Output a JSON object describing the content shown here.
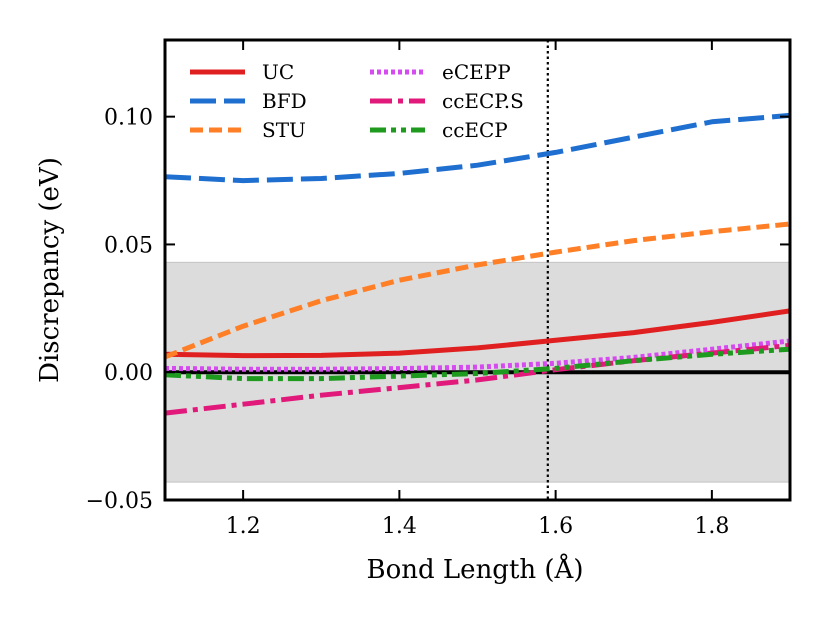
{
  "chart_data": {
    "type": "line",
    "xlabel": "Bond Length (Å)",
    "ylabel": "Discrepancy (eV)",
    "xlim": [
      1.1,
      1.9
    ],
    "ylim": [
      -0.05,
      0.13
    ],
    "xticks": [
      1.2,
      1.4,
      1.6,
      1.8
    ],
    "xtick_labels": [
      "1.2",
      "1.4",
      "1.6",
      "1.8"
    ],
    "yticks": [
      -0.05,
      0.0,
      0.05,
      0.1
    ],
    "ytick_labels": [
      "−0.05",
      "0.00",
      "0.05",
      "0.10"
    ],
    "grid": false,
    "legend_position": "top-left",
    "shaded_band": {
      "ymin": -0.043,
      "ymax": 0.043,
      "color": "#dcdcdc"
    },
    "reference_hline": {
      "y": 0.0,
      "color": "#000000"
    },
    "reference_vline": {
      "x": 1.59,
      "color": "#000000",
      "style": "dotted"
    },
    "series": [
      {
        "name": "UC",
        "color": "#e02020",
        "dash": "solid",
        "x": [
          1.1,
          1.2,
          1.3,
          1.4,
          1.5,
          1.6,
          1.7,
          1.8,
          1.9
        ],
        "y": [
          0.007,
          0.0065,
          0.0066,
          0.0075,
          0.0095,
          0.0125,
          0.0155,
          0.0195,
          0.024
        ]
      },
      {
        "name": "BFD",
        "color": "#1f6fd0",
        "dash": "long-dash",
        "x": [
          1.1,
          1.2,
          1.3,
          1.4,
          1.5,
          1.6,
          1.7,
          1.8,
          1.9
        ],
        "y": [
          0.0765,
          0.075,
          0.0758,
          0.0778,
          0.081,
          0.086,
          0.092,
          0.098,
          0.1005
        ]
      },
      {
        "name": "STU",
        "color": "#ff7f27",
        "dash": "dashed",
        "x": [
          1.1,
          1.2,
          1.3,
          1.4,
          1.5,
          1.6,
          1.7,
          1.8,
          1.9
        ],
        "y": [
          0.006,
          0.018,
          0.028,
          0.036,
          0.042,
          0.047,
          0.0515,
          0.055,
          0.058
        ]
      },
      {
        "name": "eCEPP",
        "color": "#d54bf0",
        "dash": "dotted",
        "x": [
          1.1,
          1.2,
          1.3,
          1.4,
          1.5,
          1.6,
          1.7,
          1.8,
          1.9
        ],
        "y": [
          0.0015,
          0.0012,
          0.0012,
          0.0014,
          0.002,
          0.0035,
          0.0058,
          0.009,
          0.0122
        ]
      },
      {
        "name": "ccECP.S",
        "color": "#e0197a",
        "dash": "dash-dot",
        "x": [
          1.1,
          1.2,
          1.3,
          1.4,
          1.5,
          1.6,
          1.7,
          1.8,
          1.9
        ],
        "y": [
          -0.016,
          -0.0125,
          -0.009,
          -0.006,
          -0.003,
          0.001,
          0.0045,
          0.0075,
          0.0105
        ]
      },
      {
        "name": "ccECP",
        "color": "#1e9a1e",
        "dash": "dash-dot-dot",
        "x": [
          1.1,
          1.2,
          1.3,
          1.4,
          1.5,
          1.6,
          1.7,
          1.8,
          1.9
        ],
        "y": [
          -0.001,
          -0.0025,
          -0.0025,
          -0.0015,
          -0.0005,
          0.0015,
          0.0045,
          0.007,
          0.009
        ]
      }
    ]
  }
}
